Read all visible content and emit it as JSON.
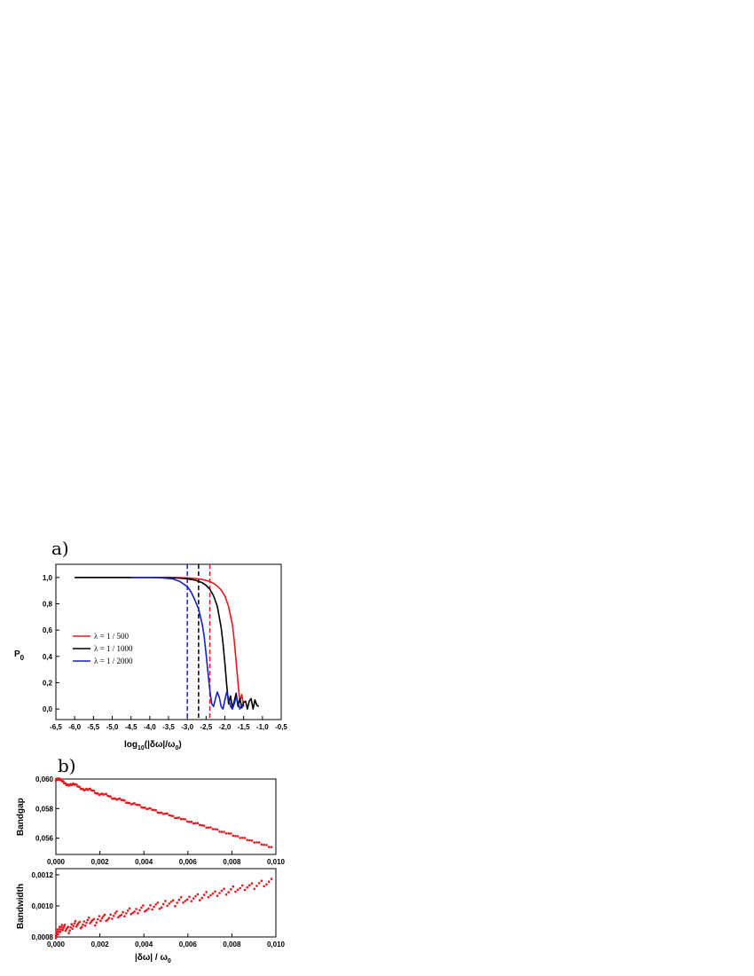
{
  "chart_data": [
    {
      "panel": "a)",
      "type": "line",
      "xlabel_main": "log",
      "xlabel_sub": "10",
      "xlabel_rest": "(|δω|/ω",
      "xlabel_sub2": "0",
      "xlabel_end": ")",
      "ylabel_main": "P",
      "ylabel_sub": "0",
      "xlim": [
        -6.5,
        -0.5
      ],
      "ylim": [
        -0.08,
        1.1
      ],
      "xticks": [
        "-6,5",
        "-6,0",
        "-5,5",
        "-5,0",
        "-4,5",
        "-4,0",
        "-3,5",
        "-3,0",
        "-2,5",
        "-2,0",
        "-1,5",
        "-1,0",
        "-0,5"
      ],
      "xtick_values": [
        -6.5,
        -6.0,
        -5.5,
        -5.0,
        -4.5,
        -4.0,
        -3.5,
        -3.0,
        -2.5,
        -2.0,
        -1.5,
        -1.0,
        -0.5
      ],
      "yticks": [
        "0,0",
        "0,2",
        "0,4",
        "0,6",
        "0,8",
        "1,0"
      ],
      "ytick_values": [
        0.0,
        0.2,
        0.4,
        0.6,
        0.8,
        1.0
      ],
      "legend_position": "middle-left",
      "series": [
        {
          "name": "λ = 1 / 500",
          "color": "#e8161b",
          "x": [
            -6.0,
            -4.0,
            -3.2,
            -3.0,
            -2.8,
            -2.6,
            -2.4,
            -2.3,
            -2.2,
            -2.1,
            -2.0,
            -1.9,
            -1.8,
            -1.75,
            -1.7,
            -1.65,
            -1.6,
            -1.55,
            -1.5
          ],
          "y": [
            1.0,
            1.0,
            0.999,
            0.997,
            0.993,
            0.985,
            0.97,
            0.955,
            0.935,
            0.905,
            0.86,
            0.78,
            0.64,
            0.52,
            0.36,
            0.2,
            0.06,
            0.11,
            0.02
          ],
          "threshold_x": -2.4
        },
        {
          "name": "λ = 1 / 1000",
          "color": "#000000",
          "x": [
            -6.0,
            -4.0,
            -3.3,
            -3.0,
            -2.8,
            -2.6,
            -2.5,
            -2.4,
            -2.3,
            -2.2,
            -2.1,
            -2.05,
            -2.0,
            -1.95,
            -1.9,
            -1.85,
            -1.8,
            -1.75,
            -1.7,
            -1.65,
            -1.6,
            -1.55,
            -1.5,
            -1.45,
            -1.4,
            -1.35,
            -1.3,
            -1.25,
            -1.2,
            -1.15,
            -1.1
          ],
          "y": [
            1.0,
            1.0,
            0.997,
            0.99,
            0.98,
            0.96,
            0.94,
            0.91,
            0.86,
            0.78,
            0.62,
            0.5,
            0.35,
            0.18,
            0.04,
            0.1,
            0.01,
            0.06,
            0.12,
            0.02,
            0.08,
            0.01,
            0.05,
            0.06,
            0.0,
            0.06,
            0.08,
            0.0,
            0.07,
            0.03,
            0.02
          ],
          "threshold_x": -2.7
        },
        {
          "name": "λ = 1 / 2000",
          "color": "#1421c9",
          "x": [
            -4.5,
            -3.8,
            -3.4,
            -3.2,
            -3.0,
            -2.9,
            -2.8,
            -2.7,
            -2.6,
            -2.55,
            -2.5,
            -2.45,
            -2.4,
            -2.35,
            -2.3,
            -2.25,
            -2.2,
            -2.15,
            -2.1,
            -2.05,
            -2.0,
            -1.95,
            -1.9,
            -1.85,
            -1.8,
            -1.75,
            -1.7,
            -1.65,
            -1.6,
            -1.55,
            -1.5
          ],
          "y": [
            1.0,
            1.0,
            0.99,
            0.97,
            0.93,
            0.89,
            0.83,
            0.76,
            0.64,
            0.55,
            0.42,
            0.28,
            0.14,
            0.04,
            0.02,
            0.08,
            0.13,
            0.09,
            0.02,
            0.0,
            0.07,
            0.13,
            0.08,
            0.02,
            0.0,
            0.04,
            0.09,
            0.05,
            0.0,
            0.03,
            0.02
          ],
          "threshold_x": -3.0
        }
      ]
    },
    {
      "panel": "b)",
      "type": "scatter",
      "ylabel": "Bandgap",
      "xlim": [
        0,
        0.01
      ],
      "ylim": [
        0.0549,
        0.06
      ],
      "xticks": [
        "0,000",
        "0,002",
        "0,004",
        "0,006",
        "0,008",
        "0,010"
      ],
      "xtick_values": [
        0,
        0.002,
        0.004,
        0.006,
        0.008,
        0.01
      ],
      "yticks": [
        "0,056",
        "0,058",
        "0,060"
      ],
      "ytick_values": [
        0.056,
        0.058,
        0.06
      ],
      "color": "#e8161b",
      "x_start": 0.0,
      "x_end": 0.0098,
      "y_start": 0.05995,
      "y_end": 0.0554
    },
    {
      "type": "scatter",
      "ylabel": "Bandwidth",
      "xlabel_main": "|δω| / ω",
      "xlabel_sub": "0",
      "xlim": [
        0,
        0.01
      ],
      "ylim": [
        0.0008,
        0.00124
      ],
      "xticks": [
        "0,000",
        "0,002",
        "0,004",
        "0,006",
        "0,008",
        "0,010"
      ],
      "xtick_values": [
        0,
        0.002,
        0.004,
        0.006,
        0.008,
        0.01
      ],
      "yticks": [
        "0,0008",
        "0,0010",
        "0,0012"
      ],
      "ytick_values": [
        0.0008,
        0.001,
        0.0012
      ],
      "color": "#e8161b",
      "x_start": 0.0,
      "x_end": 0.0098,
      "y_start": 0.00081,
      "y_end": 0.00115
    }
  ]
}
